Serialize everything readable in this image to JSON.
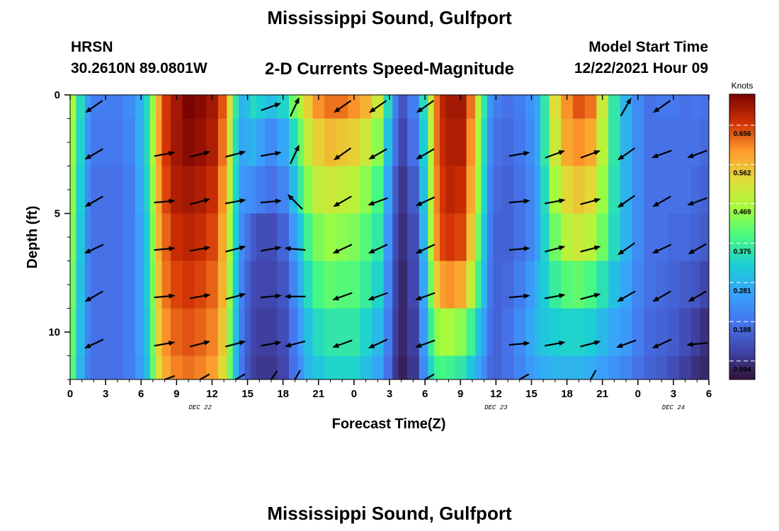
{
  "header": {
    "title": "Mississippi Sound, Gulfport",
    "model": "HRSN",
    "coordinates": "30.2610N  89.0801W",
    "subtitle": "2-D Currents Speed-Magnitude",
    "start_label": "Model Start Time",
    "start_value": "12/22/2021 Hour 09"
  },
  "footer": {
    "title": "Mississippi Sound, Gulfport"
  },
  "chart_data": {
    "type": "heatmap",
    "title": "2-D Currents Speed-Magnitude",
    "xlabel": "Forecast Time(Z)",
    "ylabel": "Depth (ft)",
    "x_hours_range": [
      0,
      54
    ],
    "y_range_ft": [
      0,
      12
    ],
    "x_tick_labels": [
      "0",
      "3",
      "6",
      "9",
      "12",
      "15",
      "18",
      "21",
      "0",
      "3",
      "6",
      "9",
      "12",
      "15",
      "18",
      "21",
      "0",
      "3",
      "6"
    ],
    "y_tick_labels": [
      "0",
      "5",
      "10"
    ],
    "y_tick_values": [
      0,
      5,
      10
    ],
    "date_labels": [
      {
        "text": "DEC 22",
        "hour": 11
      },
      {
        "text": "DEC 23",
        "hour": 36
      },
      {
        "text": "DEC 24",
        "hour": 51
      }
    ],
    "colorbar": {
      "unit": "Knots",
      "ticks": [
        "0.656",
        "0.562",
        "0.469",
        "0.375",
        "0.281",
        "0.188",
        "0.094"
      ],
      "tick_values": [
        0.656,
        0.562,
        0.469,
        0.375,
        0.281,
        0.188,
        0.094
      ],
      "min": 0.05,
      "max": 0.73
    },
    "time_hours": [
      0,
      1,
      1.5,
      2,
      3,
      4,
      5,
      6,
      6.5,
      7,
      7.5,
      8,
      9,
      10,
      11,
      12,
      13,
      13.5,
      14,
      14.5,
      15,
      15.5,
      16,
      17,
      18,
      19,
      19.5,
      20,
      21,
      22,
      23,
      24,
      25,
      26,
      27,
      27.5,
      28,
      29,
      30,
      30.5,
      31,
      31.5,
      32,
      33,
      34,
      34.5,
      35,
      35.5,
      36,
      37,
      38,
      39,
      39.5,
      40,
      41,
      42,
      43,
      44,
      45,
      46,
      47,
      48,
      49,
      50,
      51,
      52,
      53,
      53.5,
      54
    ],
    "depth_levels_ft": [
      0,
      2,
      4,
      6,
      8,
      10,
      12
    ],
    "speed_knots": [
      [
        0.46,
        0.34,
        0.24,
        0.2,
        0.2,
        0.2,
        0.22,
        0.27,
        0.34,
        0.45,
        0.58,
        0.66,
        0.7,
        0.73,
        0.72,
        0.7,
        0.64,
        0.52,
        0.36,
        0.28,
        0.3,
        0.34,
        0.32,
        0.3,
        0.33,
        0.42,
        0.47,
        0.54,
        0.6,
        0.62,
        0.62,
        0.6,
        0.57,
        0.5,
        0.34,
        0.2,
        0.14,
        0.2,
        0.34,
        0.5,
        0.62,
        0.68,
        0.7,
        0.7,
        0.62,
        0.48,
        0.36,
        0.24,
        0.2,
        0.18,
        0.2,
        0.23,
        0.26,
        0.36,
        0.52,
        0.6,
        0.64,
        0.62,
        0.5,
        0.36,
        0.28,
        0.22,
        0.18,
        0.19,
        0.19,
        0.18,
        0.19,
        0.18,
        0.18
      ],
      [
        0.45,
        0.33,
        0.23,
        0.19,
        0.19,
        0.19,
        0.21,
        0.27,
        0.34,
        0.46,
        0.59,
        0.66,
        0.7,
        0.72,
        0.71,
        0.69,
        0.62,
        0.5,
        0.34,
        0.26,
        0.27,
        0.28,
        0.25,
        0.22,
        0.26,
        0.34,
        0.42,
        0.49,
        0.54,
        0.56,
        0.55,
        0.54,
        0.5,
        0.44,
        0.3,
        0.18,
        0.12,
        0.18,
        0.32,
        0.48,
        0.62,
        0.67,
        0.69,
        0.69,
        0.6,
        0.46,
        0.34,
        0.22,
        0.18,
        0.17,
        0.19,
        0.22,
        0.26,
        0.36,
        0.5,
        0.58,
        0.6,
        0.58,
        0.48,
        0.36,
        0.28,
        0.22,
        0.18,
        0.18,
        0.18,
        0.18,
        0.18,
        0.17,
        0.17
      ],
      [
        0.44,
        0.32,
        0.22,
        0.18,
        0.18,
        0.18,
        0.2,
        0.26,
        0.33,
        0.45,
        0.58,
        0.65,
        0.69,
        0.7,
        0.69,
        0.67,
        0.6,
        0.48,
        0.33,
        0.24,
        0.23,
        0.22,
        0.2,
        0.18,
        0.21,
        0.29,
        0.37,
        0.44,
        0.49,
        0.5,
        0.49,
        0.48,
        0.44,
        0.39,
        0.26,
        0.15,
        0.1,
        0.15,
        0.3,
        0.47,
        0.61,
        0.66,
        0.68,
        0.67,
        0.58,
        0.45,
        0.33,
        0.21,
        0.17,
        0.16,
        0.18,
        0.21,
        0.25,
        0.34,
        0.46,
        0.53,
        0.55,
        0.53,
        0.45,
        0.35,
        0.28,
        0.22,
        0.18,
        0.18,
        0.18,
        0.18,
        0.17,
        0.16,
        0.16
      ],
      [
        0.43,
        0.31,
        0.21,
        0.18,
        0.18,
        0.18,
        0.2,
        0.25,
        0.32,
        0.44,
        0.57,
        0.63,
        0.67,
        0.68,
        0.67,
        0.65,
        0.58,
        0.46,
        0.32,
        0.22,
        0.18,
        0.15,
        0.13,
        0.13,
        0.16,
        0.24,
        0.31,
        0.38,
        0.43,
        0.45,
        0.44,
        0.43,
        0.4,
        0.36,
        0.24,
        0.13,
        0.09,
        0.13,
        0.28,
        0.46,
        0.6,
        0.65,
        0.66,
        0.65,
        0.55,
        0.42,
        0.31,
        0.2,
        0.16,
        0.16,
        0.18,
        0.21,
        0.25,
        0.33,
        0.42,
        0.48,
        0.5,
        0.48,
        0.42,
        0.34,
        0.28,
        0.22,
        0.18,
        0.18,
        0.17,
        0.17,
        0.16,
        0.15,
        0.15
      ],
      [
        0.42,
        0.3,
        0.21,
        0.18,
        0.18,
        0.18,
        0.2,
        0.25,
        0.32,
        0.43,
        0.55,
        0.62,
        0.65,
        0.66,
        0.65,
        0.63,
        0.57,
        0.45,
        0.31,
        0.21,
        0.16,
        0.13,
        0.12,
        0.12,
        0.14,
        0.21,
        0.28,
        0.34,
        0.39,
        0.41,
        0.4,
        0.4,
        0.37,
        0.33,
        0.22,
        0.12,
        0.08,
        0.12,
        0.26,
        0.42,
        0.54,
        0.59,
        0.6,
        0.58,
        0.49,
        0.38,
        0.29,
        0.19,
        0.16,
        0.17,
        0.2,
        0.24,
        0.28,
        0.32,
        0.37,
        0.4,
        0.41,
        0.39,
        0.35,
        0.3,
        0.26,
        0.21,
        0.18,
        0.17,
        0.16,
        0.15,
        0.14,
        0.12,
        0.12
      ],
      [
        0.41,
        0.29,
        0.21,
        0.18,
        0.18,
        0.18,
        0.2,
        0.25,
        0.31,
        0.42,
        0.54,
        0.6,
        0.63,
        0.64,
        0.63,
        0.61,
        0.55,
        0.43,
        0.3,
        0.2,
        0.15,
        0.12,
        0.11,
        0.11,
        0.13,
        0.19,
        0.25,
        0.3,
        0.34,
        0.36,
        0.36,
        0.36,
        0.33,
        0.29,
        0.2,
        0.11,
        0.08,
        0.11,
        0.24,
        0.37,
        0.44,
        0.46,
        0.46,
        0.44,
        0.38,
        0.31,
        0.25,
        0.18,
        0.16,
        0.18,
        0.22,
        0.26,
        0.29,
        0.31,
        0.32,
        0.33,
        0.33,
        0.32,
        0.29,
        0.26,
        0.24,
        0.2,
        0.17,
        0.16,
        0.15,
        0.13,
        0.11,
        0.09,
        0.09
      ],
      [
        0.4,
        0.28,
        0.2,
        0.18,
        0.18,
        0.18,
        0.2,
        0.24,
        0.3,
        0.41,
        0.52,
        0.58,
        0.61,
        0.62,
        0.61,
        0.59,
        0.53,
        0.42,
        0.29,
        0.19,
        0.14,
        0.11,
        0.1,
        0.1,
        0.12,
        0.18,
        0.23,
        0.28,
        0.31,
        0.33,
        0.33,
        0.33,
        0.3,
        0.26,
        0.18,
        0.1,
        0.07,
        0.1,
        0.22,
        0.33,
        0.38,
        0.39,
        0.38,
        0.36,
        0.31,
        0.26,
        0.22,
        0.17,
        0.16,
        0.18,
        0.21,
        0.24,
        0.26,
        0.27,
        0.28,
        0.28,
        0.28,
        0.27,
        0.25,
        0.23,
        0.21,
        0.18,
        0.16,
        0.15,
        0.13,
        0.11,
        0.09,
        0.08,
        0.08
      ]
    ],
    "vector_grid_hours": [
      2,
      8,
      11,
      14,
      17,
      19,
      23,
      26,
      30,
      38,
      41,
      44,
      47,
      50,
      53
    ],
    "vector_depths_ft": [
      0.5,
      2.5,
      4.5,
      6.5,
      8.5,
      10.5,
      12
    ],
    "vector_angles_deg": [
      [
        215,
        null,
        null,
        null,
        20,
        65,
        215,
        215,
        215,
        null,
        null,
        null,
        60,
        215,
        null
      ],
      [
        210,
        10,
        15,
        15,
        10,
        65,
        215,
        210,
        210,
        10,
        20,
        20,
        215,
        200,
        200
      ],
      [
        210,
        5,
        15,
        10,
        5,
        135,
        210,
        200,
        205,
        5,
        10,
        15,
        215,
        210,
        200
      ],
      [
        205,
        5,
        10,
        15,
        10,
        175,
        205,
        205,
        205,
        5,
        15,
        15,
        215,
        205,
        210
      ],
      [
        210,
        5,
        10,
        15,
        5,
        180,
        200,
        200,
        200,
        5,
        10,
        15,
        210,
        210,
        210
      ],
      [
        205,
        10,
        15,
        15,
        10,
        195,
        200,
        205,
        200,
        5,
        10,
        15,
        200,
        205,
        185
      ],
      [
        null,
        200,
        210,
        210,
        235,
        240,
        null,
        null,
        210,
        210,
        null,
        240,
        null,
        null,
        null
      ]
    ]
  }
}
